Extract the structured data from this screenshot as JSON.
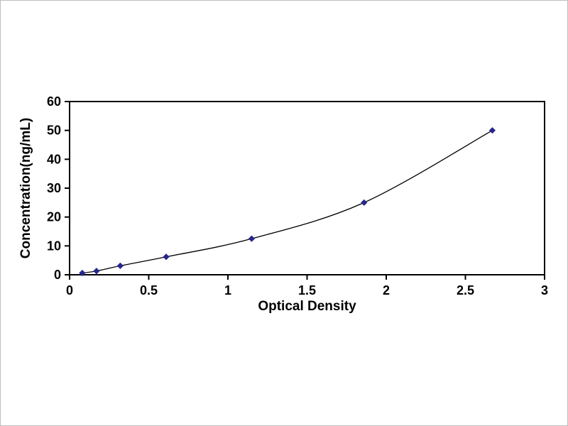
{
  "figure": {
    "background": "#ffffff",
    "frame_color": "#bdbdbd"
  },
  "chart_data": {
    "type": "line",
    "title": "",
    "xlabel": "Optical Density",
    "ylabel": "Concentration(ng/mL)",
    "x": [
      0.08,
      0.17,
      0.32,
      0.61,
      1.15,
      1.86,
      2.67
    ],
    "y": [
      0.6,
      1.3,
      3.1,
      6.2,
      12.5,
      25.0,
      50.0
    ],
    "xlim": [
      0,
      3
    ],
    "ylim": [
      0,
      60
    ],
    "xticks": [
      0,
      0.5,
      1,
      1.5,
      2,
      2.5,
      3
    ],
    "xtick_labels": [
      "0",
      "0.5",
      "1",
      "1.5",
      "2",
      "2.5",
      "3"
    ],
    "yticks": [
      0,
      10,
      20,
      30,
      40,
      50,
      60
    ],
    "ytick_labels": [
      "0",
      "10",
      "20",
      "30",
      "40",
      "50",
      "60"
    ],
    "grid": false,
    "legend": null,
    "marker": "diamond",
    "line_color": "#000000",
    "marker_color": "#26268C",
    "axis_color": "#000000"
  }
}
